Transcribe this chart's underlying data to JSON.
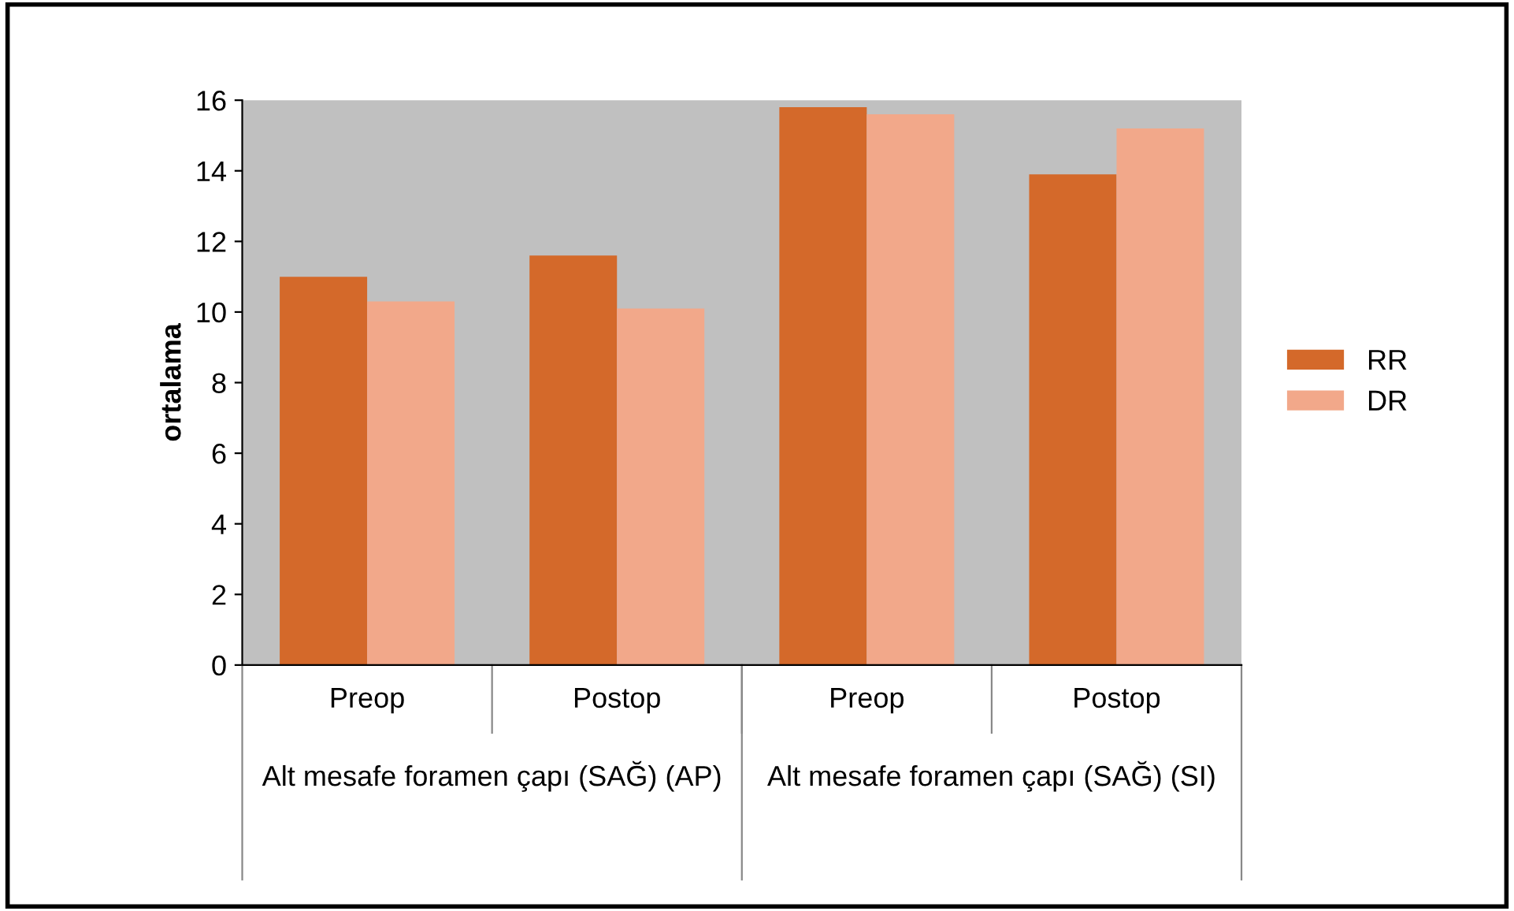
{
  "chart_data": {
    "type": "bar",
    "ylabel": "ortalama",
    "categories": [
      "Preop",
      "Postop",
      "Preop",
      "Postop"
    ],
    "series": [
      {
        "name": "RR",
        "color": "#d4692a",
        "values": [
          11.0,
          11.6,
          15.8,
          13.9
        ]
      },
      {
        "name": "DR",
        "color": "#f2a88a",
        "values": [
          10.3,
          10.1,
          15.6,
          15.2
        ]
      }
    ],
    "annotations": [
      "Alt mesafe foramen çapı (SAĞ) (AP)",
      "Alt mesafe foramen çapı (SAĞ) (SI)"
    ],
    "ylim": [
      0,
      16
    ],
    "yticks": [
      0,
      2,
      4,
      6,
      8,
      10,
      12,
      14,
      16
    ],
    "grid": false,
    "legend": "right"
  }
}
